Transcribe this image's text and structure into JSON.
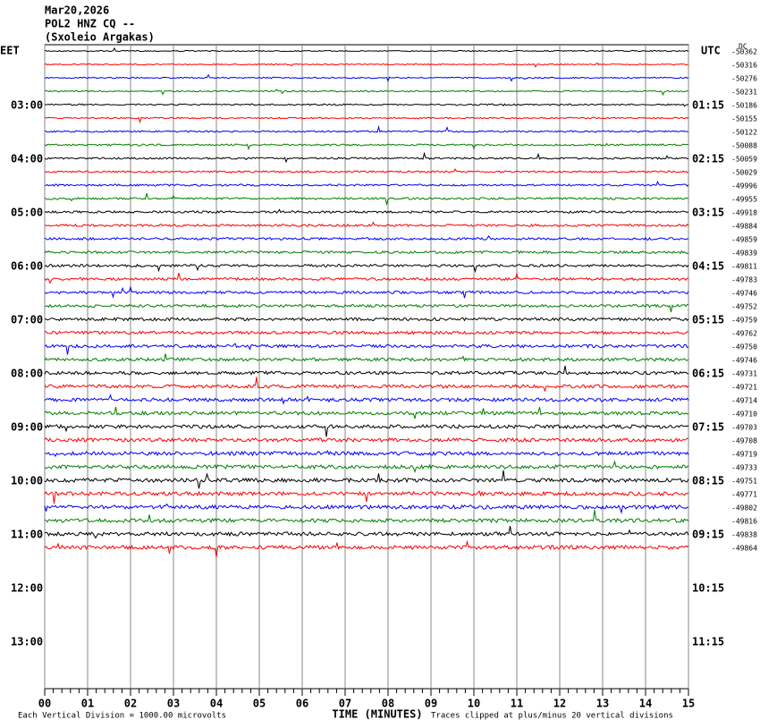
{
  "header": {
    "date": "Mar20,2026",
    "station": "POL2 HNZ CQ --",
    "site": "(Sxoleio Argakas)"
  },
  "left_label": "EET",
  "right_label": "UTC",
  "dc_label": "DC",
  "left_times": [
    "03:00",
    "04:00",
    "05:00",
    "06:00",
    "07:00",
    "08:00",
    "09:00",
    "10:00",
    "11:00",
    "12:00",
    "13:00"
  ],
  "right_times": [
    "01:15",
    "02:15",
    "03:15",
    "04:15",
    "05:15",
    "06:15",
    "07:15",
    "08:15",
    "09:15",
    "10:15",
    "11:15"
  ],
  "dc_offsets": [
    -50362,
    -50316,
    -50276,
    -50231,
    -50186,
    -50155,
    -50122,
    -50088,
    -50059,
    -50029,
    -49996,
    -49955,
    -49918,
    -49884,
    -49859,
    -49839,
    -49811,
    -49783,
    -49746,
    -49752,
    -49759,
    -49762,
    -49750,
    -49746,
    -49731,
    -49721,
    -49714,
    -49710,
    -49703,
    -49708,
    -49719,
    -49733,
    -49751,
    -49771,
    -49802,
    -49816,
    -49838,
    -49864
  ],
  "trace_colors": [
    "#000000",
    "#ff0000",
    "#0000ff",
    "#008000"
  ],
  "x_ticks": [
    "00",
    "01",
    "02",
    "03",
    "04",
    "05",
    "06",
    "07",
    "08",
    "09",
    "10",
    "11",
    "12",
    "13",
    "14",
    "15"
  ],
  "footer": {
    "scale": "Each Vertical Division = 1000.00 microvolts",
    "axis_title": "TIME (MINUTES)",
    "clip": "Traces clipped at plus/minus 20 vertical divisions"
  }
}
